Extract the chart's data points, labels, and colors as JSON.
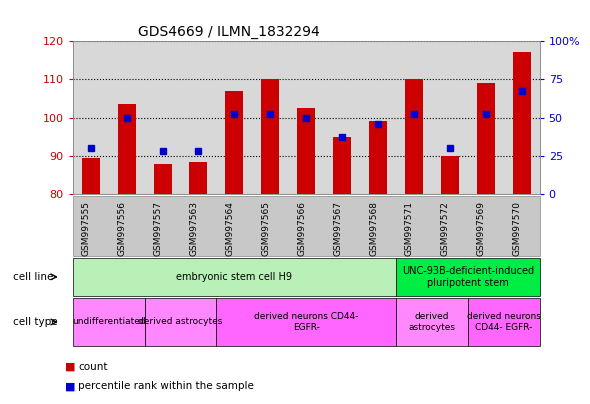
{
  "title": "GDS4669 / ILMN_1832294",
  "samples": [
    "GSM997555",
    "GSM997556",
    "GSM997557",
    "GSM997563",
    "GSM997564",
    "GSM997565",
    "GSM997566",
    "GSM997567",
    "GSM997568",
    "GSM997571",
    "GSM997572",
    "GSM997569",
    "GSM997570"
  ],
  "count_values": [
    89.5,
    103.5,
    88.0,
    88.5,
    107.0,
    110.0,
    102.5,
    95.0,
    99.0,
    110.0,
    90.0,
    109.0,
    117.0
  ],
  "percentile_values": [
    30,
    50,
    28,
    28,
    52,
    52,
    50,
    37,
    46,
    52,
    30,
    52,
    67
  ],
  "ylim_left": [
    80,
    120
  ],
  "ylim_right": [
    0,
    100
  ],
  "yticks_left": [
    80,
    90,
    100,
    110,
    120
  ],
  "yticks_right": [
    0,
    25,
    50,
    75,
    100
  ],
  "bar_color": "#cc0000",
  "dot_color": "#0000cc",
  "plot_bg": "#d8d8d8",
  "cell_line_groups": [
    {
      "label": "embryonic stem cell H9",
      "start": 0,
      "end": 9,
      "color": "#b8f0b8"
    },
    {
      "label": "UNC-93B-deficient-induced\npluripotent stem",
      "start": 9,
      "end": 13,
      "color": "#00ee44"
    }
  ],
  "cell_type_groups": [
    {
      "label": "undifferentiated",
      "start": 0,
      "end": 2,
      "color": "#ff88ff"
    },
    {
      "label": "derived astrocytes",
      "start": 2,
      "end": 4,
      "color": "#ff88ff"
    },
    {
      "label": "derived neurons CD44-\nEGFR-",
      "start": 4,
      "end": 9,
      "color": "#ff66ff"
    },
    {
      "label": "derived\nastrocytes",
      "start": 9,
      "end": 11,
      "color": "#ff88ff"
    },
    {
      "label": "derived neurons\nCD44- EGFR-",
      "start": 11,
      "end": 13,
      "color": "#ff66ff"
    }
  ],
  "legend_count_label": "count",
  "legend_pct_label": "percentile rank within the sample"
}
